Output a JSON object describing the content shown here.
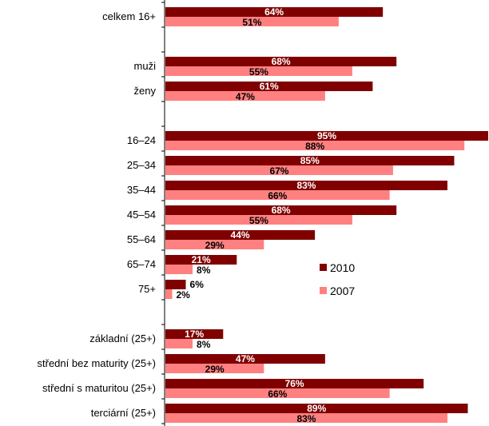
{
  "chart_data": {
    "type": "bar",
    "orientation": "horizontal",
    "categories": [
      "celkem 16+",
      "",
      "muži",
      "ženy",
      "",
      "16–24",
      "25–34",
      "35–44",
      "45–54",
      "55–64",
      "65–74",
      "75+",
      "",
      "základní (25+)",
      "střední bez maturity (25+)",
      "střední s maturitou (25+)",
      "terciární (25+)"
    ],
    "series": [
      {
        "name": "2010",
        "color": "#800000",
        "values": [
          64,
          null,
          68,
          61,
          null,
          95,
          85,
          83,
          68,
          44,
          21,
          6,
          null,
          17,
          47,
          76,
          89
        ],
        "labels": [
          "64%",
          "",
          "68%",
          "61%",
          "",
          "95%",
          "85%",
          "83%",
          "68%",
          "44%",
          "21%",
          "6%",
          "",
          "17%",
          "47%",
          "76%",
          "89%"
        ]
      },
      {
        "name": "2007",
        "color": "#ff8080",
        "values": [
          51,
          null,
          55,
          47,
          null,
          88,
          67,
          66,
          55,
          29,
          8,
          2,
          null,
          8,
          29,
          66,
          83
        ],
        "labels": [
          "51%",
          "",
          "55%",
          "47%",
          "",
          "88%",
          "67%",
          "66%",
          "55%",
          "29%",
          "8%",
          "2%",
          "",
          "8%",
          "29%",
          "66%",
          "83%"
        ]
      }
    ],
    "xlim": [
      0,
      95
    ],
    "grid": false,
    "legend_position": "right"
  }
}
